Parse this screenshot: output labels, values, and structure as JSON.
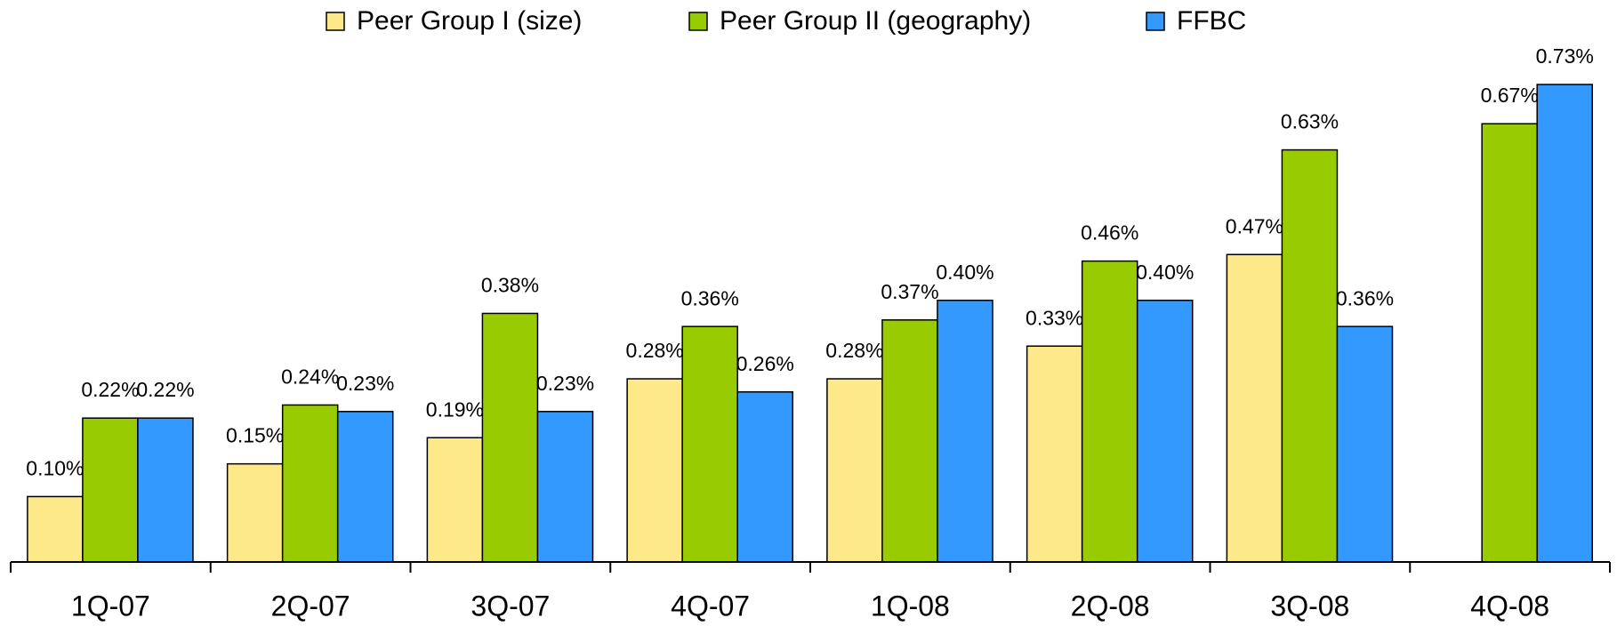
{
  "chart_data": {
    "type": "bar",
    "categories": [
      "1Q-07",
      "2Q-07",
      "3Q-07",
      "4Q-07",
      "1Q-08",
      "2Q-08",
      "3Q-08",
      "4Q-08"
    ],
    "series": [
      {
        "name": "Peer Group I (size)",
        "color": "#fde98a",
        "values": [
          0.1,
          0.15,
          0.19,
          0.28,
          0.28,
          0.33,
          0.47,
          null
        ],
        "value_labels": [
          "0.10%",
          "0.15%",
          "0.19%",
          "0.28%",
          "0.28%",
          "0.33%",
          "0.47%",
          null
        ]
      },
      {
        "name": "Peer Group II (geography)",
        "color": "#99cc00",
        "values": [
          0.22,
          0.24,
          0.38,
          0.36,
          0.37,
          0.46,
          0.63,
          0.67
        ],
        "value_labels": [
          "0.22%",
          "0.24%",
          "0.38%",
          "0.36%",
          "0.37%",
          "0.46%",
          "0.63%",
          "0.67%"
        ]
      },
      {
        "name": "FFBC",
        "color": "#3399ff",
        "values": [
          0.22,
          0.23,
          0.23,
          0.26,
          0.4,
          0.4,
          0.36,
          0.73
        ],
        "value_labels": [
          "0.22%",
          "0.23%",
          "0.23%",
          "0.26%",
          "0.40%",
          "0.40%",
          "0.36%",
          "0.73%"
        ]
      }
    ]
  }
}
